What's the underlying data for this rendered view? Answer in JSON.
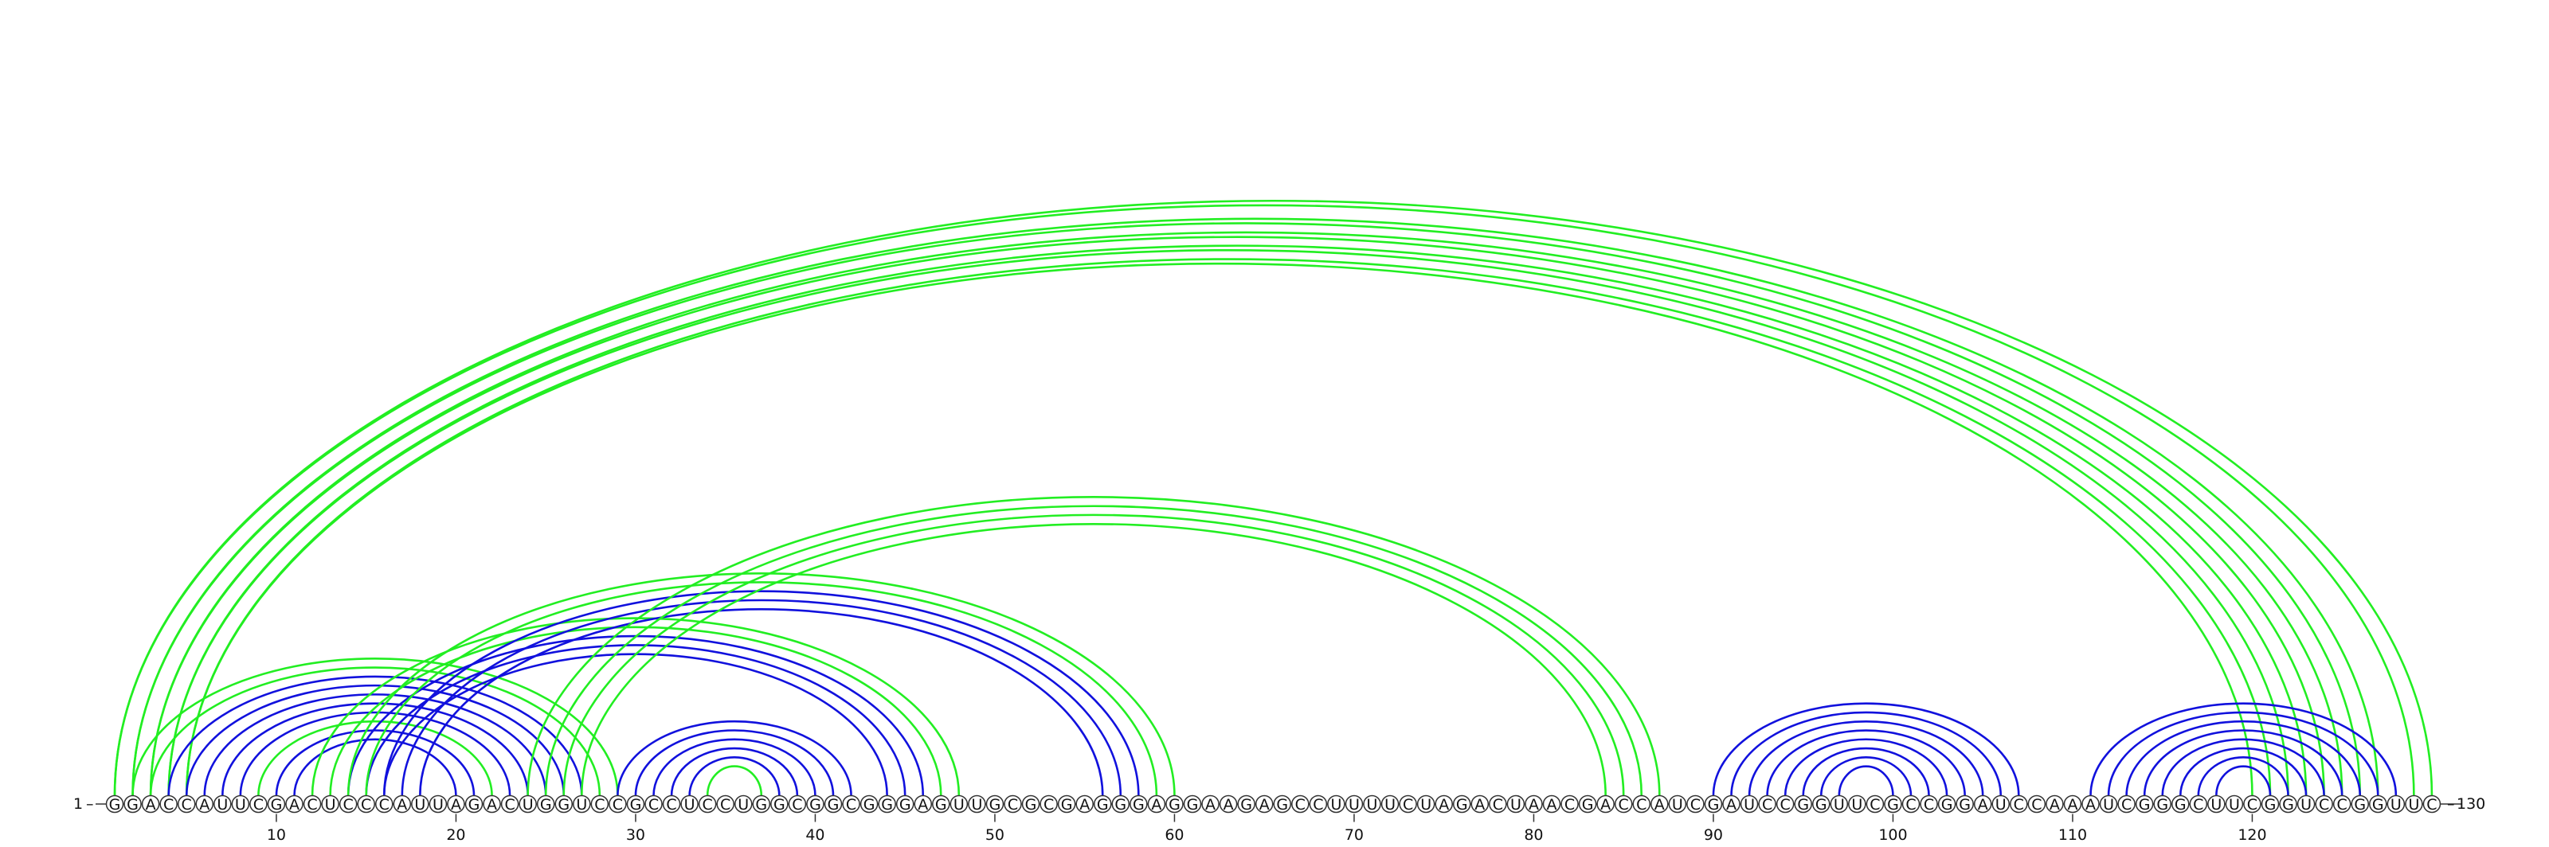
{
  "sequence": "GGACCAUUCGACUCCCAUUAGACUGGUCCGCCUCCUGGCGGCGGGAGUUGCGCGAGGGAGGAAGAGCCUUUUCUAGACUAACGACCAUCGAUCCGGUUCGCCGGAUCCAAAUCGGGCUUCGGUCCGGUUC",
  "labels": {
    "start": "1",
    "end": "130"
  },
  "ticks": [
    10,
    20,
    30,
    40,
    50,
    60,
    70,
    80,
    90,
    100,
    110,
    120
  ],
  "colors": {
    "green": "#22ee22",
    "blue": "#1111dd",
    "line": "#333333"
  },
  "arcs": [
    {
      "i": 1,
      "j": 130,
      "c": "green"
    },
    {
      "i": 1,
      "j": 129,
      "c": "green"
    },
    {
      "i": 2,
      "j": 127,
      "c": "green"
    },
    {
      "i": 2,
      "j": 126,
      "c": "green"
    },
    {
      "i": 3,
      "j": 125,
      "c": "green"
    },
    {
      "i": 3,
      "j": 124,
      "c": "green"
    },
    {
      "i": 4,
      "j": 123,
      "c": "green"
    },
    {
      "i": 4,
      "j": 122,
      "c": "green"
    },
    {
      "i": 5,
      "j": 121,
      "c": "green"
    },
    {
      "i": 5,
      "j": 120,
      "c": "green"
    },
    {
      "i": 2,
      "j": 29,
      "c": "green"
    },
    {
      "i": 3,
      "j": 28,
      "c": "green"
    },
    {
      "i": 4,
      "j": 27,
      "c": "blue"
    },
    {
      "i": 5,
      "j": 26,
      "c": "blue"
    },
    {
      "i": 6,
      "j": 25,
      "c": "blue"
    },
    {
      "i": 7,
      "j": 24,
      "c": "blue"
    },
    {
      "i": 8,
      "j": 23,
      "c": "blue"
    },
    {
      "i": 9,
      "j": 22,
      "c": "green"
    },
    {
      "i": 10,
      "j": 21,
      "c": "blue"
    },
    {
      "i": 11,
      "j": 20,
      "c": "blue"
    },
    {
      "i": 12,
      "j": 48,
      "c": "green"
    },
    {
      "i": 13,
      "j": 47,
      "c": "green"
    },
    {
      "i": 14,
      "j": 46,
      "c": "blue"
    },
    {
      "i": 15,
      "j": 45,
      "c": "blue"
    },
    {
      "i": 16,
      "j": 44,
      "c": "blue"
    },
    {
      "i": 14,
      "j": 60,
      "c": "green"
    },
    {
      "i": 15,
      "j": 59,
      "c": "green"
    },
    {
      "i": 16,
      "j": 58,
      "c": "blue"
    },
    {
      "i": 17,
      "j": 57,
      "c": "blue"
    },
    {
      "i": 18,
      "j": 56,
      "c": "blue"
    },
    {
      "i": 24,
      "j": 87,
      "c": "green"
    },
    {
      "i": 25,
      "j": 86,
      "c": "green"
    },
    {
      "i": 26,
      "j": 85,
      "c": "green"
    },
    {
      "i": 27,
      "j": 84,
      "c": "green"
    },
    {
      "i": 29,
      "j": 42,
      "c": "blue"
    },
    {
      "i": 30,
      "j": 41,
      "c": "blue"
    },
    {
      "i": 31,
      "j": 40,
      "c": "blue"
    },
    {
      "i": 32,
      "j": 39,
      "c": "blue"
    },
    {
      "i": 33,
      "j": 38,
      "c": "blue"
    },
    {
      "i": 34,
      "j": 37,
      "c": "green"
    },
    {
      "i": 90,
      "j": 107,
      "c": "blue"
    },
    {
      "i": 91,
      "j": 106,
      "c": "blue"
    },
    {
      "i": 92,
      "j": 105,
      "c": "blue"
    },
    {
      "i": 93,
      "j": 104,
      "c": "blue"
    },
    {
      "i": 94,
      "j": 103,
      "c": "blue"
    },
    {
      "i": 95,
      "j": 102,
      "c": "blue"
    },
    {
      "i": 96,
      "j": 101,
      "c": "blue"
    },
    {
      "i": 97,
      "j": 100,
      "c": "blue"
    },
    {
      "i": 111,
      "j": 128,
      "c": "blue"
    },
    {
      "i": 112,
      "j": 127,
      "c": "blue"
    },
    {
      "i": 113,
      "j": 126,
      "c": "blue"
    },
    {
      "i": 114,
      "j": 125,
      "c": "blue"
    },
    {
      "i": 115,
      "j": 124,
      "c": "blue"
    },
    {
      "i": 116,
      "j": 123,
      "c": "blue"
    },
    {
      "i": 117,
      "j": 122,
      "c": "blue"
    },
    {
      "i": 118,
      "j": 121,
      "c": "blue"
    }
  ]
}
